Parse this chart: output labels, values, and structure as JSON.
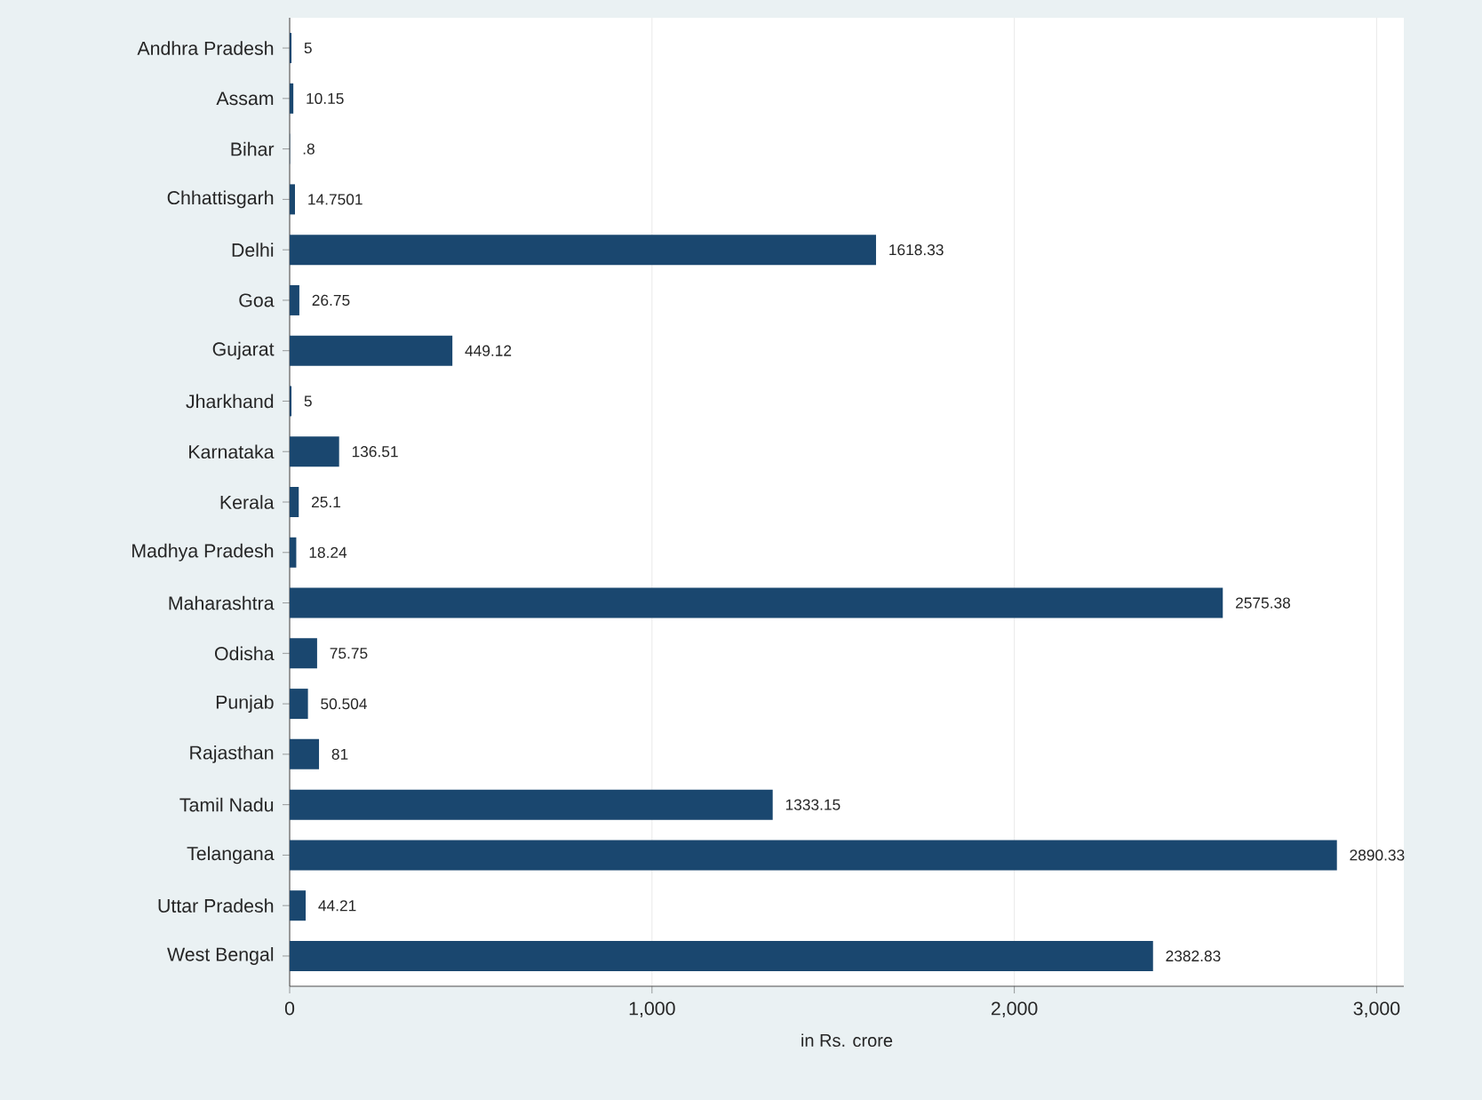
{
  "chart_data": {
    "type": "bar",
    "orientation": "horizontal",
    "xlabel": "in Rs. crore",
    "categories": [
      "Andhra Pradesh",
      "Assam",
      "Bihar",
      "Chhattisgarh",
      "Delhi",
      "Goa",
      "Gujarat",
      "Jharkhand",
      "Karnataka",
      "Kerala",
      "Madhya Pradesh",
      "Maharashtra",
      "Odisha",
      "Punjab",
      "Rajasthan",
      "Tamil Nadu",
      "Telangana",
      "Uttar Pradesh",
      "West Bengal"
    ],
    "values": [
      5,
      10.15,
      0.8,
      14.7501,
      1618.33,
      26.75,
      449.12,
      5,
      136.51,
      25.1,
      18.24,
      2575.38,
      75.75,
      50.504,
      81,
      1333.15,
      2890.33,
      44.21,
      2382.83
    ],
    "value_labels": [
      "5",
      "10.15",
      ".8",
      "14.7501",
      "1618.33",
      "26.75",
      "449.12",
      "5",
      "136.51",
      "25.1",
      "18.24",
      "2575.38",
      "75.75",
      "50.504",
      "81",
      "1333.15",
      "2890.33",
      "44.21",
      "2382.83"
    ],
    "color": "#1a476f",
    "xlim": [
      0,
      3075
    ],
    "xticks": [
      0,
      {
        "value": 1000,
        "label": "1,000"
      },
      {
        "value": 2000,
        "label": "2,000"
      },
      {
        "value": 3000,
        "label": "3,000"
      }
    ],
    "grid": "x"
  }
}
